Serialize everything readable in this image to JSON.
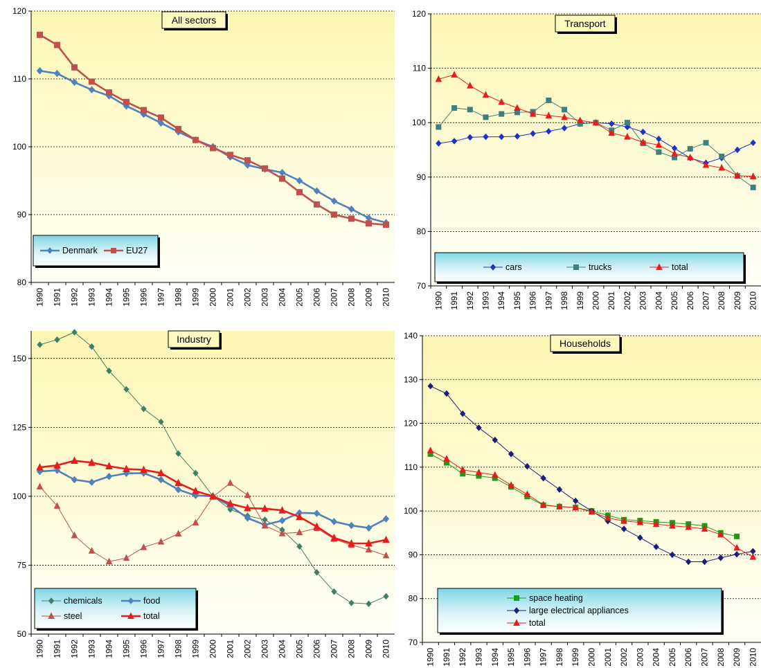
{
  "chart_data": [
    {
      "type": "line",
      "title": "All sectors",
      "x": [
        "1990",
        "1991",
        "1992",
        "1993",
        "1994",
        "1995",
        "1996",
        "1997",
        "1998",
        "1999",
        "2000",
        "2001",
        "2002",
        "2003",
        "2004",
        "2005",
        "2006",
        "2007",
        "2008",
        "2009",
        "2010"
      ],
      "ylim": [
        80,
        120
      ],
      "yticks": [
        80,
        90,
        100,
        110,
        120
      ],
      "grid": true,
      "legend": "bottom-left",
      "series": [
        {
          "name": "Denmark",
          "color": "#4f81bd",
          "marker": "diamond",
          "values": [
            111.2,
            110.8,
            109.5,
            108.4,
            107.5,
            106.0,
            104.8,
            103.5,
            102.2,
            101.0,
            100.0,
            98.5,
            97.3,
            96.7,
            96.2,
            95.0,
            93.5,
            92.0,
            90.8,
            89.5,
            88.8
          ]
        },
        {
          "name": "EU27",
          "color": "#c0504d",
          "marker": "square",
          "values": [
            116.5,
            115.0,
            111.7,
            109.6,
            108.0,
            106.6,
            105.4,
            104.3,
            102.6,
            101.0,
            99.8,
            98.8,
            98.0,
            96.8,
            95.3,
            93.3,
            91.5,
            90.0,
            89.4,
            88.7,
            88.5
          ]
        }
      ]
    },
    {
      "type": "line",
      "title": "Transport",
      "x": [
        "1990",
        "1991",
        "1992",
        "1993",
        "1994",
        "1995",
        "1996",
        "1997",
        "1998",
        "1999",
        "2000",
        "2001",
        "2002",
        "2003",
        "2004",
        "2005",
        "2006",
        "2007",
        "2008",
        "2009",
        "2010"
      ],
      "ylim": [
        70,
        120
      ],
      "yticks": [
        70,
        80,
        90,
        100,
        110,
        120
      ],
      "grid": true,
      "legend": "bottom",
      "series": [
        {
          "name": "cars",
          "color": "#1c32c8",
          "marker": "diamond",
          "values": [
            96.2,
            96.6,
            97.3,
            97.4,
            97.4,
            97.5,
            98.0,
            98.4,
            99.0,
            99.8,
            100.0,
            99.8,
            99.2,
            98.3,
            97.0,
            95.3,
            93.5,
            92.6,
            93.5,
            95.0,
            96.3
          ]
        },
        {
          "name": "trucks",
          "color": "#3f7f7f",
          "marker": "square",
          "values": [
            99.2,
            102.7,
            102.4,
            101.0,
            101.6,
            101.9,
            102.0,
            104.1,
            102.4,
            99.8,
            100.0,
            98.6,
            100.0,
            96.2,
            94.6,
            93.6,
            95.2,
            96.3,
            93.8,
            90.2,
            88.1
          ]
        },
        {
          "name": "total",
          "color": "#e81c1c",
          "marker": "triangle",
          "values": [
            108.0,
            108.8,
            106.8,
            105.1,
            103.8,
            102.7,
            101.6,
            101.3,
            101.0,
            100.4,
            100.0,
            98.1,
            97.4,
            96.4,
            95.9,
            94.3,
            93.6,
            92.2,
            91.7,
            90.3,
            90.1
          ]
        }
      ]
    },
    {
      "type": "line",
      "title": "Industry",
      "x": [
        "1990",
        "1991",
        "1992",
        "1993",
        "1994",
        "1995",
        "1996",
        "1997",
        "1998",
        "1999",
        "2000",
        "2001",
        "2002",
        "2003",
        "2004",
        "2005",
        "2006",
        "2007",
        "2008",
        "2009",
        "2010"
      ],
      "ylim": [
        50,
        160
      ],
      "yticks": [
        50,
        75,
        100,
        125,
        150
      ],
      "grid": true,
      "legend": "bottom-left",
      "series": [
        {
          "name": "chemicals",
          "color": "#3f7f66",
          "marker": "diamond",
          "values": [
            155.0,
            156.8,
            159.5,
            154.3,
            145.5,
            138.8,
            131.7,
            127.0,
            115.5,
            108.4,
            100.0,
            95.2,
            92.9,
            91.5,
            87.8,
            81.8,
            72.4,
            65.4,
            61.3,
            61.0,
            63.7
          ]
        },
        {
          "name": "food",
          "color": "#4f81bd",
          "marker": "diamond",
          "values": [
            109.0,
            109.4,
            106.0,
            105.1,
            107.2,
            108.3,
            108.4,
            106.0,
            102.4,
            100.3,
            100.0,
            96.5,
            92.1,
            89.6,
            91.2,
            94.0,
            93.8,
            90.8,
            89.4,
            88.5,
            91.8
          ]
        },
        {
          "name": "steel",
          "color": "#c0504d",
          "marker": "triangle",
          "values": [
            103.5,
            96.5,
            85.8,
            80.2,
            76.3,
            77.6,
            81.5,
            83.5,
            86.4,
            90.4,
            99.8,
            104.8,
            100.4,
            89.3,
            86.5,
            86.9,
            88.4,
            84.5,
            82.3,
            80.6,
            78.5
          ]
        },
        {
          "name": "total",
          "color": "#e81c1c",
          "marker": "triangle",
          "values": [
            110.5,
            111.2,
            112.9,
            112.2,
            110.9,
            109.9,
            109.6,
            108.4,
            104.8,
            101.9,
            100.0,
            97.3,
            95.7,
            95.5,
            94.9,
            92.5,
            89.0,
            84.9,
            82.9,
            82.9,
            84.2
          ]
        }
      ]
    },
    {
      "type": "line",
      "title": "Households",
      "x": [
        "1990",
        "1991",
        "1992",
        "1993",
        "1994",
        "1995",
        "1996",
        "1997",
        "1998",
        "1999",
        "2000",
        "2001",
        "2002",
        "2003",
        "2004",
        "2005",
        "2006",
        "2007",
        "2008",
        "2009",
        "2010"
      ],
      "ylim": [
        70,
        140
      ],
      "yticks": [
        70,
        80,
        90,
        100,
        110,
        120,
        130,
        140
      ],
      "grid": true,
      "legend": "bottom-left",
      "series": [
        {
          "name": "space heating",
          "color": "#1c9a1c",
          "marker": "square",
          "values": [
            113.0,
            111.0,
            108.5,
            108.0,
            107.5,
            105.5,
            103.3,
            101.3,
            101.0,
            100.8,
            100.0,
            99.0,
            98.0,
            97.8,
            97.5,
            97.3,
            97.0,
            96.6,
            95.0,
            94.2,
            null
          ]
        },
        {
          "name": "large electrical appliances",
          "color": "#1c1c7a",
          "marker": "diamond",
          "values": [
            128.5,
            126.8,
            122.2,
            119.0,
            116.2,
            113.0,
            110.2,
            107.5,
            104.9,
            102.3,
            100.0,
            97.7,
            95.9,
            93.9,
            91.8,
            90.0,
            88.4,
            88.4,
            89.3,
            90.1,
            90.8
          ]
        },
        {
          "name": "total",
          "color": "#e81c1c",
          "marker": "triangle",
          "values": [
            113.8,
            111.9,
            109.4,
            108.8,
            108.2,
            105.9,
            103.8,
            101.4,
            101.0,
            100.8,
            99.8,
            98.4,
            97.7,
            97.4,
            97.0,
            96.6,
            96.3,
            95.9,
            94.6,
            91.6,
            89.5
          ]
        }
      ]
    }
  ]
}
